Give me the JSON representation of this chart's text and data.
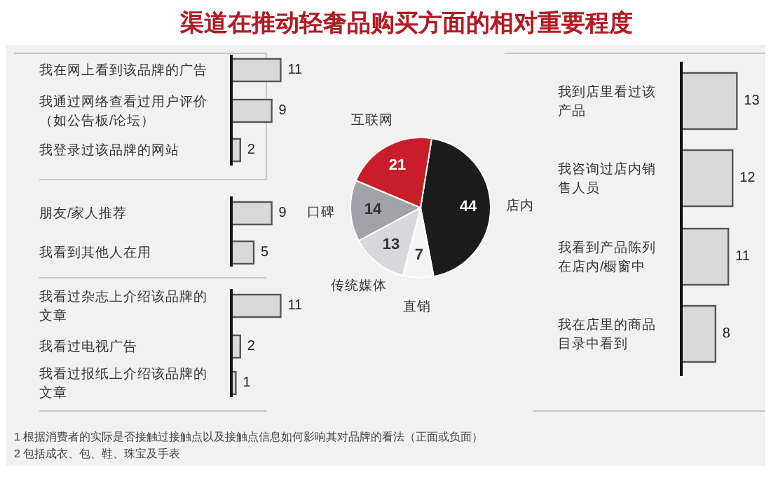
{
  "chart_data": [
    {
      "type": "pie",
      "title": "渠道在推动轻奢品购买方面的相对重要程度",
      "categories": [
        "店内",
        "直销",
        "传统媒体",
        "口碑",
        "互联网"
      ],
      "values": [
        44,
        7,
        13,
        14,
        21
      ],
      "colors": [
        "#1c1c1c",
        "#f4f4f4",
        "#d8d8dc",
        "#a2a2a8",
        "#c81e2a"
      ],
      "data_labels": true,
      "annotations": [
        "1 根据消费者的实际是否接触过接触点以及接触点信息如何影响其对品牌的看法（正面或负面）",
        "2 包括成衣、包、鞋、珠宝及手表"
      ]
    },
    {
      "type": "bar",
      "orientation": "horizontal",
      "categories": [
        "我在网上看到该品牌的广告",
        "我通过网络查看过用户评价（如公告板/论坛）",
        "我登录过该品牌的网站"
      ],
      "values": [
        11,
        9,
        2
      ],
      "color": "#d9d9d9",
      "data_labels": true
    },
    {
      "type": "bar",
      "orientation": "horizontal",
      "categories": [
        "朋友/家人推荐",
        "我看到其他人在用"
      ],
      "values": [
        9,
        5
      ],
      "color": "#d9d9d9",
      "data_labels": true
    },
    {
      "type": "bar",
      "orientation": "horizontal",
      "categories": [
        "我看过杂志上介绍该品牌的文章",
        "我看过电视广告",
        "我看过报纸上介绍该品牌的文章"
      ],
      "values": [
        11,
        2,
        1
      ],
      "color": "#d9d9d9",
      "data_labels": true
    },
    {
      "type": "bar",
      "orientation": "horizontal",
      "categories": [
        "我到店里看过该产品",
        "我咨询过店内销售人员",
        "我看到产品陈列在店内/橱窗中",
        "我在店里的商品目录中看到"
      ],
      "values": [
        13,
        12,
        11,
        8
      ],
      "color": "#d9d9d9",
      "data_labels": true
    }
  ]
}
